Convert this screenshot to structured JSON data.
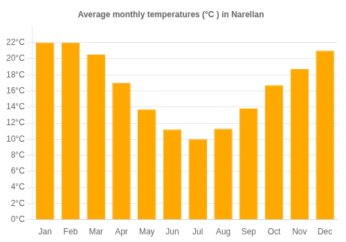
{
  "chart_data": {
    "type": "bar",
    "title": "Average monthly temperatures (°C ) in Narellan",
    "categories": [
      "Jan",
      "Feb",
      "Mar",
      "Apr",
      "May",
      "Jun",
      "Jul",
      "Aug",
      "Sep",
      "Oct",
      "Nov",
      "Dec"
    ],
    "values": [
      22.0,
      22.0,
      20.5,
      17.0,
      13.7,
      11.2,
      10.0,
      11.3,
      13.8,
      16.7,
      18.7,
      21.0
    ],
    "color": "#FFA800",
    "ylim": [
      0,
      24
    ],
    "yticks": [
      {
        "value": 0,
        "label": "0°C"
      },
      {
        "value": 2,
        "label": "2°C"
      },
      {
        "value": 4,
        "label": "4°C"
      },
      {
        "value": 6,
        "label": "6°C"
      },
      {
        "value": 8,
        "label": "8°C"
      },
      {
        "value": 10,
        "label": "10°C"
      },
      {
        "value": 12,
        "label": "12°C"
      },
      {
        "value": 14,
        "label": "14°C"
      },
      {
        "value": 16,
        "label": "16°C"
      },
      {
        "value": 18,
        "label": "18°C"
      },
      {
        "value": 20,
        "label": "20°C"
      },
      {
        "value": 22,
        "label": "22°C"
      }
    ],
    "grid": true
  }
}
